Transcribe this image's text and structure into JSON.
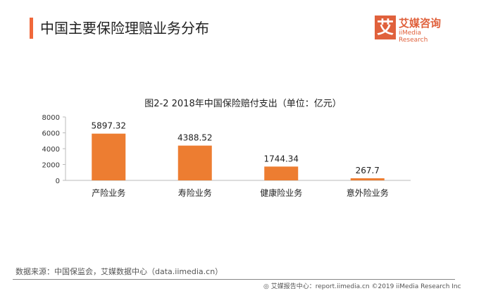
{
  "header": {
    "title": "中国主要保险理赔业务分布",
    "logo_cn": "艾媒咨询",
    "logo_en": "iiMedia Research",
    "logo_mark": "艾"
  },
  "chart_data": {
    "type": "bar",
    "title": "图2-2 2018年中国保险赔付支出（单位：亿元）",
    "categories": [
      "产险业务",
      "寿险业务",
      "健康险业务",
      "意外险业务"
    ],
    "values": [
      5897.32,
      4388.52,
      1744.34,
      267.7
    ],
    "data_labels": [
      "5897.32",
      "4388.52",
      "1744.34",
      "267.7"
    ],
    "ylim": [
      0,
      8000
    ],
    "yticks": [
      0,
      2000,
      4000,
      6000,
      8000
    ],
    "grid": false,
    "color": "#ed7d31"
  },
  "footer": {
    "source": "数据来源：中国保监会，艾媒数据中心（data.iimedia.cn）",
    "credit": "艾媒报告中心：report.iimedia.cn   ©2019  iiMedia Research  Inc"
  }
}
